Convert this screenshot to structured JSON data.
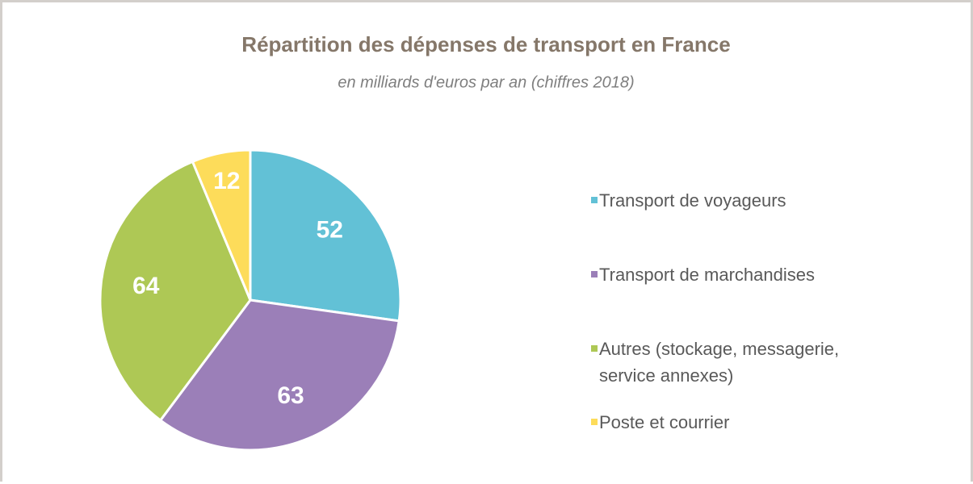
{
  "chart_data": {
    "type": "pie",
    "title": "Répartition des dépenses de transport en France",
    "subtitle": "en milliards d'euros par an (chiffres 2018)",
    "categories": [
      "Transport de voyageurs",
      "Transport de marchandises",
      "Autres (stockage, messagerie, service annexes)",
      "Poste et courrier"
    ],
    "values": [
      52,
      63,
      64,
      12
    ],
    "colors": [
      "#62c1d6",
      "#9b7fb8",
      "#aec855",
      "#fddc5a"
    ],
    "legend": "right"
  }
}
